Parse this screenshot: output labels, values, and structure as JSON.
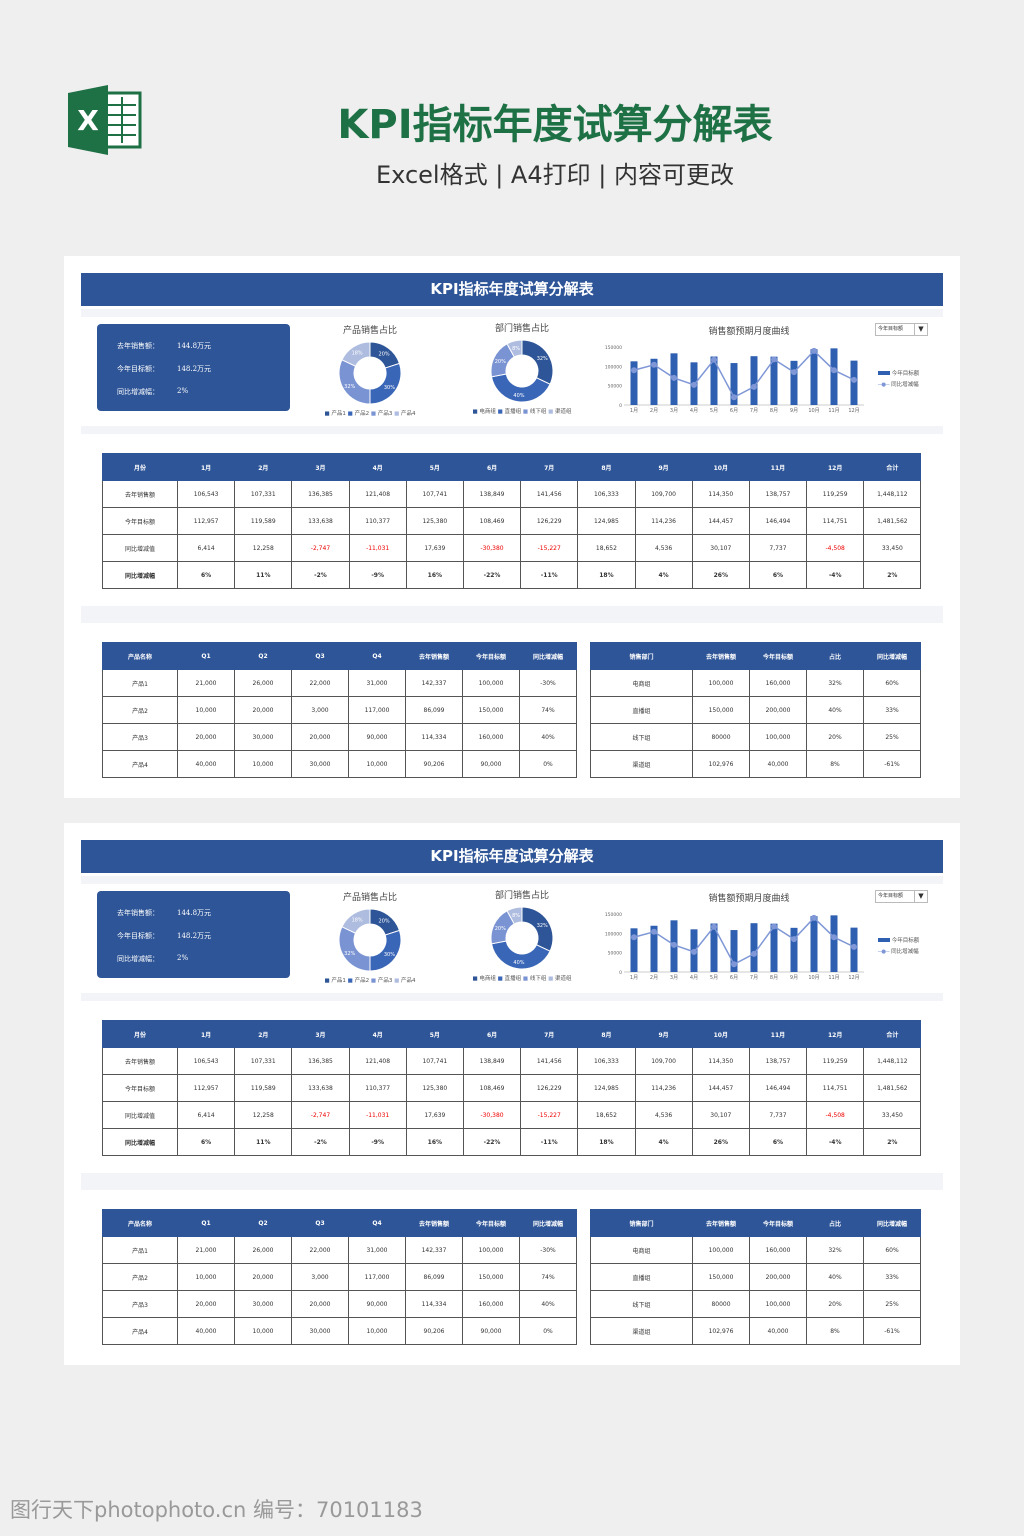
{
  "header": {
    "title": "KPI指标年度试算分解表",
    "subtitle": "Excel格式 | A4打印 | 内容可更改",
    "logo_text": "X"
  },
  "sheet": {
    "title": "KPI指标年度试算分解表",
    "summary": [
      {
        "label": "去年销售额：",
        "value": "144.8万元"
      },
      {
        "label": "今年目标额：",
        "value": "148.2万元"
      },
      {
        "label": "同比增减幅：",
        "value": "2%"
      }
    ],
    "donut1": {
      "title": "产品销售占比",
      "slices": [
        {
          "label": "产品1",
          "value": 20,
          "text": "20%",
          "color": "#2e5597"
        },
        {
          "label": "产品2",
          "value": 30,
          "text": "30%",
          "color": "#3a66b8"
        },
        {
          "label": "产品3",
          "value": 32,
          "text": "32%",
          "color": "#7a93d3"
        },
        {
          "label": "产品4",
          "value": 18,
          "text": "18%",
          "color": "#aebcdf"
        }
      ]
    },
    "donut2": {
      "title": "部门销售占比",
      "slices": [
        {
          "label": "电商组",
          "value": 32,
          "text": "32%",
          "color": "#2e5597"
        },
        {
          "label": "直播组",
          "value": 40,
          "text": "40%",
          "color": "#3a66b8"
        },
        {
          "label": "线下组",
          "value": 20,
          "text": "20%",
          "color": "#7a93d3"
        },
        {
          "label": "渠道组",
          "value": 8,
          "text": "8%",
          "color": "#aebcdf"
        }
      ]
    },
    "chart_data": {
      "type": "bar",
      "title": "销售额预期月度曲线",
      "categories": [
        "1月",
        "2月",
        "3月",
        "4月",
        "5月",
        "6月",
        "7月",
        "8月",
        "9月",
        "10月",
        "11月",
        "12月"
      ],
      "ylim": [
        0,
        150000
      ],
      "yticks": [
        "150000",
        "100000",
        "50000",
        "0"
      ],
      "series": [
        {
          "name": "今年目标额",
          "type": "bar",
          "color": "#2e5fb0",
          "values": [
            112957,
            119589,
            133638,
            110377,
            125380,
            108469,
            126229,
            124985,
            114236,
            144457,
            146494,
            114751
          ]
        },
        {
          "name": "同比增减幅",
          "type": "line",
          "color": "#7f97d6",
          "values": [
            90000,
            104000,
            70000,
            52000,
            117000,
            20000,
            47000,
            118000,
            85000,
            140000,
            90000,
            65000
          ]
        }
      ],
      "legend": "right",
      "dropdown": "今年目标额"
    },
    "table1": {
      "headers": [
        "月份",
        "1月",
        "2月",
        "3月",
        "4月",
        "5月",
        "6月",
        "7月",
        "8月",
        "9月",
        "10月",
        "11月",
        "12月",
        "合计"
      ],
      "rows": [
        [
          "去年销售额",
          "106,543",
          "107,331",
          "136,385",
          "121,408",
          "107,741",
          "138,849",
          "141,456",
          "106,333",
          "109,700",
          "114,350",
          "138,757",
          "119,259",
          "1,448,112"
        ],
        [
          "今年目标额",
          "112,957",
          "119,589",
          "133,638",
          "110,377",
          "125,380",
          "108,469",
          "126,229",
          "124,985",
          "114,236",
          "144,457",
          "146,494",
          "114,751",
          "1,481,562"
        ],
        [
          "同比增减值",
          "6,414",
          "12,258",
          "-2,747",
          "-11,031",
          "17,639",
          "-30,380",
          "-15,227",
          "18,652",
          "4,536",
          "30,107",
          "7,737",
          "-4,508",
          "33,450"
        ],
        [
          "同比增减幅",
          "6%",
          "11%",
          "-2%",
          "-9%",
          "16%",
          "-22%",
          "-11%",
          "18%",
          "4%",
          "26%",
          "6%",
          "-4%",
          "2%"
        ]
      ]
    },
    "table2": {
      "headers": [
        "产品名称",
        "Q1",
        "Q2",
        "Q3",
        "Q4",
        "去年销售额",
        "今年目标额",
        "同比增减幅"
      ],
      "rows": [
        [
          "产品1",
          "21,000",
          "26,000",
          "22,000",
          "31,000",
          "142,337",
          "100,000",
          "-30%"
        ],
        [
          "产品2",
          "10,000",
          "20,000",
          "3,000",
          "117,000",
          "86,099",
          "150,000",
          "74%"
        ],
        [
          "产品3",
          "20,000",
          "30,000",
          "20,000",
          "90,000",
          "114,334",
          "160,000",
          "40%"
        ],
        [
          "产品4",
          "40,000",
          "10,000",
          "30,000",
          "10,000",
          "90,206",
          "90,000",
          "0%"
        ]
      ]
    },
    "table3": {
      "headers": [
        "销售部门",
        "去年销售额",
        "今年目标额",
        "占比",
        "同比增减幅"
      ],
      "rows": [
        [
          "电商组",
          "100,000",
          "160,000",
          "32%",
          "60%"
        ],
        [
          "直播组",
          "150,000",
          "200,000",
          "40%",
          "33%"
        ],
        [
          "线下组",
          "80000",
          "100,000",
          "20%",
          "25%"
        ],
        [
          "渠道组",
          "102,976",
          "40,000",
          "8%",
          "-61%"
        ]
      ]
    }
  },
  "watermark": "图行天下photophoto.cn 编号：70101183"
}
